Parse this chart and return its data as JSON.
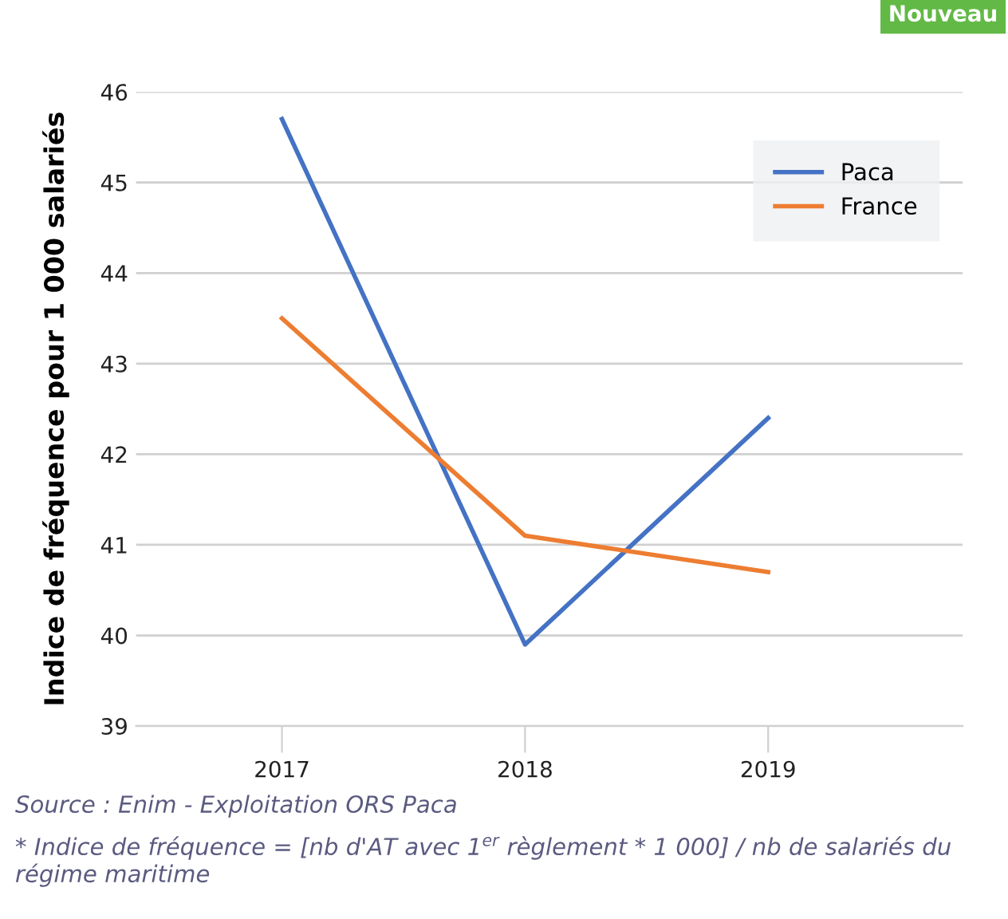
{
  "chart_data": {
    "type": "line",
    "ylabel": "Indice de fréquence pour 1 000 salariés",
    "categories": [
      "2017",
      "2018",
      "2019"
    ],
    "series": [
      {
        "name": "Paca",
        "color": "#4472c4",
        "values": [
          45.7,
          39.9,
          42.4
        ]
      },
      {
        "name": "France",
        "color": "#ed7d31",
        "values": [
          43.5,
          41.1,
          40.7
        ]
      }
    ],
    "ylim": [
      39,
      46
    ],
    "yticks": [
      39,
      40,
      41,
      42,
      43,
      44,
      45,
      46
    ],
    "grid": "y",
    "legend": "top right",
    "marker": "none",
    "line_style": "solid",
    "annotations": [
      "Nouveau",
      "Source : Enim - Exploitation ORS Paca",
      "* Indice de fréquence = [nb d'AT avec 1$^{er}$ règlement * 1 000] / nb de salariés du régime maritime"
    ]
  }
}
